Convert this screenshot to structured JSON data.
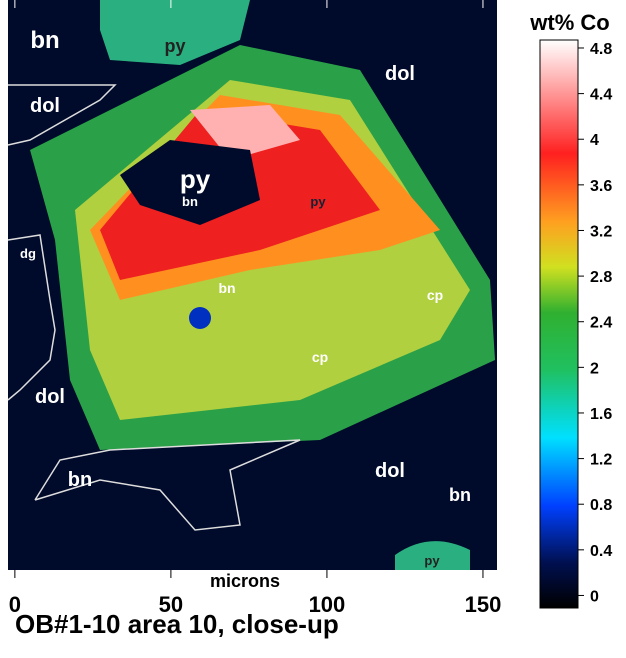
{
  "title": "OB#1-10 area 10, close-up",
  "x_axis": {
    "label": "microns",
    "lim": [
      -2.2,
      154.5
    ],
    "ticks": [
      0,
      50,
      100,
      150
    ]
  },
  "colorbar": {
    "label": "wt% Co",
    "lim": [
      -0.11,
      4.87
    ],
    "ticks": [
      0,
      0.4,
      0.8,
      1.2,
      1.6,
      2,
      2.4,
      2.8,
      3.2,
      3.6,
      4,
      4.4,
      4.8
    ]
  },
  "labels": [
    "bn",
    "py",
    "dol",
    "dol",
    "py",
    "bn",
    "py",
    "dg",
    "bn",
    "cp",
    "cp",
    "dol",
    "dol",
    "bn",
    "bn",
    "py"
  ]
}
